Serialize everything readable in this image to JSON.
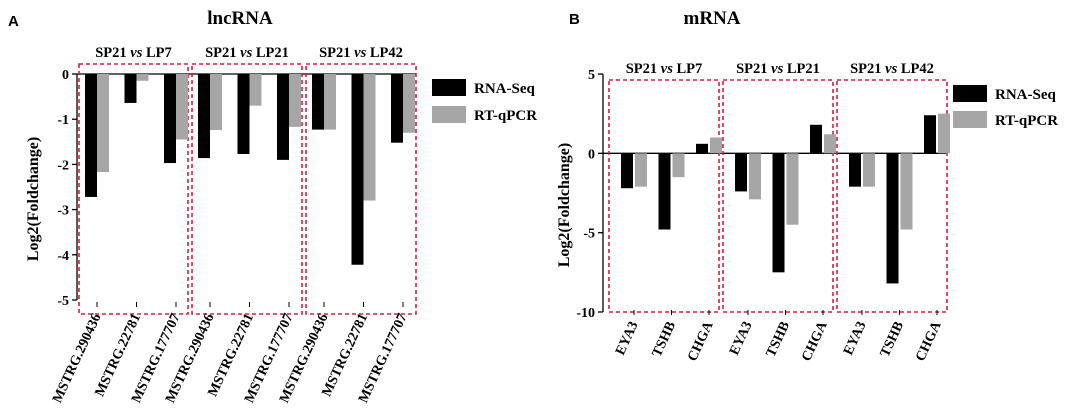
{
  "chart_data": [
    {
      "panel": "A",
      "type": "bar",
      "title": "lncRNA",
      "ylabel": "Log2(Foldchange)",
      "ylim": [
        -5,
        0
      ],
      "yticks": [
        0,
        -1,
        -2,
        -3,
        -4,
        -5
      ],
      "legend_position": "right",
      "groups": [
        {
          "label_parts": [
            "SP21",
            " vs ",
            "LP7"
          ],
          "categories": [
            "MSTRG.290436",
            "MSTRG.22781",
            "MSTRG.177707"
          ]
        },
        {
          "label_parts": [
            "SP21",
            " vs ",
            "LP21"
          ],
          "categories": [
            "MSTRG.290436",
            "MSTRG.22781",
            "MSTRG.177707"
          ]
        },
        {
          "label_parts": [
            "SP21",
            " vs ",
            "LP42"
          ],
          "categories": [
            "MSTRG.290436",
            "MSTRG.22781",
            "MSTRG.177707"
          ]
        }
      ],
      "series": [
        {
          "name": "RNA-Seq",
          "color": "#000000",
          "values": [
            -2.72,
            -0.64,
            -1.97,
            -1.86,
            -1.77,
            -1.9,
            -1.23,
            -4.22,
            -1.52
          ]
        },
        {
          "name": "RT-qPCR",
          "color": "#a6a6a6",
          "values": [
            -2.17,
            -0.15,
            -1.45,
            -1.24,
            -0.7,
            -1.17,
            -1.23,
            -2.8,
            -1.3
          ]
        }
      ]
    },
    {
      "panel": "B",
      "type": "bar",
      "title": "mRNA",
      "ylabel": "Log2(Foldchange)",
      "ylim": [
        -10,
        5
      ],
      "yticks": [
        5,
        0,
        -5,
        -10
      ],
      "legend_position": "right",
      "groups": [
        {
          "label_parts": [
            "SP21",
            " vs ",
            "LP7"
          ],
          "categories": [
            "EYA3",
            "TSHB",
            "CHGA"
          ]
        },
        {
          "label_parts": [
            "SP21",
            " vs ",
            "LP21"
          ],
          "categories": [
            "EYA3",
            "TSHB",
            "CHGA"
          ]
        },
        {
          "label_parts": [
            "SP21",
            " vs ",
            "LP42"
          ],
          "categories": [
            "EYA3",
            "TSHB",
            "CHGA"
          ]
        }
      ],
      "series": [
        {
          "name": "RNA-Seq",
          "color": "#000000",
          "values": [
            -2.2,
            -4.8,
            0.6,
            -2.4,
            -7.5,
            1.8,
            -2.1,
            -8.2,
            2.4
          ]
        },
        {
          "name": "RT-qPCR",
          "color": "#a6a6a6",
          "values": [
            -2.1,
            -1.5,
            1.0,
            -2.9,
            -4.5,
            1.2,
            -2.1,
            -4.8,
            2.5
          ]
        }
      ]
    }
  ]
}
